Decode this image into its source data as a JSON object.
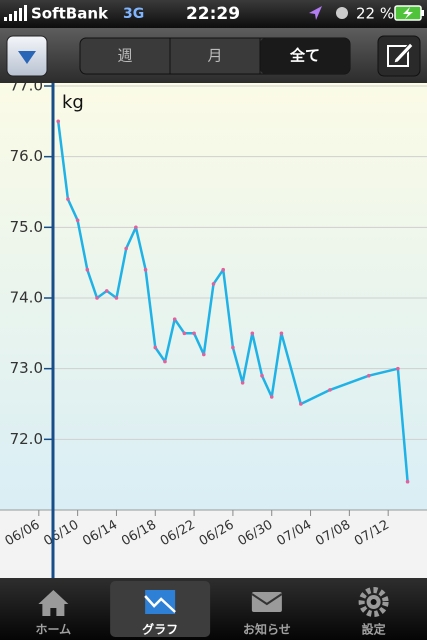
{
  "status_bar": {
    "carrier": "SoftBank",
    "network": "3G",
    "time": "22:29",
    "battery": "22 %"
  },
  "nav": {
    "segments": [
      "週",
      "月",
      "全て"
    ],
    "selected": 2
  },
  "chart_data": {
    "type": "line",
    "y_label": "kg",
    "x": [
      "06/08",
      "06/09",
      "06/10",
      "06/11",
      "06/12",
      "06/13",
      "06/14",
      "06/15",
      "06/16",
      "06/17",
      "06/18",
      "06/19",
      "06/20",
      "06/21",
      "06/22",
      "06/23",
      "06/24",
      "06/25",
      "06/26",
      "06/27",
      "06/28",
      "06/29",
      "06/30",
      "07/01",
      "07/03",
      "07/06",
      "07/10",
      "07/13",
      "07/14"
    ],
    "values": [
      76.5,
      75.4,
      75.1,
      74.4,
      74.0,
      74.1,
      74.0,
      74.7,
      75.0,
      74.4,
      73.3,
      73.1,
      73.7,
      73.5,
      73.5,
      73.2,
      74.2,
      74.4,
      73.3,
      72.8,
      73.5,
      72.9,
      72.6,
      73.5,
      72.5,
      72.7,
      72.9,
      73.0,
      71.4
    ],
    "color": "#1fb2e6",
    "marker_color": "#e2609c",
    "xlim": [
      "06/02",
      "07/16"
    ],
    "xticks": [
      "06/06",
      "06/10",
      "06/14",
      "06/18",
      "06/22",
      "06/26",
      "06/30",
      "07/04",
      "07/08",
      "07/12"
    ],
    "ylim": [
      71,
      77
    ],
    "yticks": [
      {
        "value": 72,
        "label": "72.0"
      },
      {
        "value": 73,
        "label": "73.0"
      },
      {
        "value": 74,
        "label": "74.0"
      },
      {
        "value": 75,
        "label": "75.0"
      },
      {
        "value": 76,
        "label": "76.0"
      },
      {
        "value": 77,
        "label": "77.0"
      }
    ],
    "grid": true
  },
  "tab_bar": {
    "items": [
      "ホーム",
      "グラフ",
      "お知らせ",
      "設定"
    ],
    "selected": 1
  }
}
